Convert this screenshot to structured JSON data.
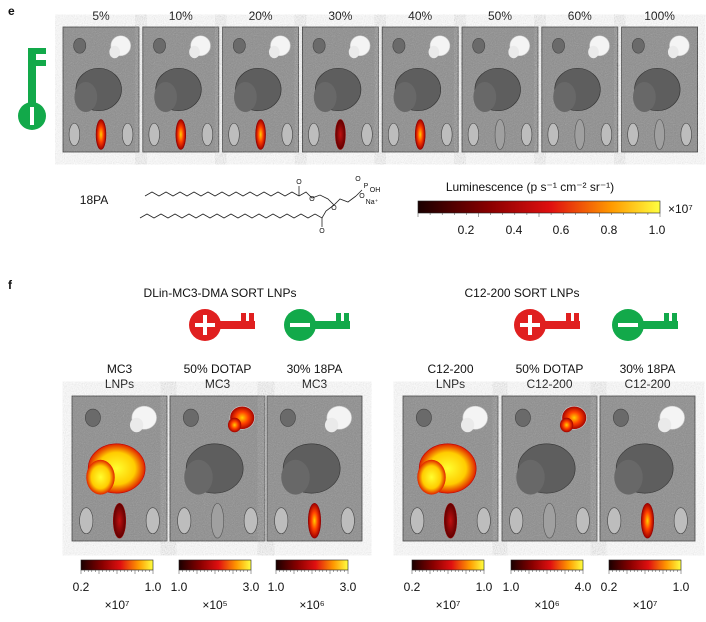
{
  "panel_e": {
    "letter": "e",
    "percentages": [
      "5%",
      "10%",
      "20%",
      "30%",
      "40%",
      "50%",
      "60%",
      "100%"
    ],
    "molecule_name": "18PA",
    "molecule_atoms": [
      "O",
      "O",
      "O",
      "O",
      "P",
      "O",
      "OH",
      "O",
      "Na⁺"
    ],
    "colorbar": {
      "title": "Luminescence (p s⁻¹ cm⁻² sr⁻¹)",
      "ticks": [
        "0.2",
        "0.4",
        "0.6",
        "0.8",
        "1.0"
      ],
      "multiplier": "×10⁷"
    }
  },
  "panel_f": {
    "letter": "f",
    "groups": [
      {
        "title": "DLin-MC3-DMA SORT LNPs",
        "images": [
          {
            "label": [
              "MC3",
              "LNPs"
            ],
            "ticks": [
              "0.2",
              "1.0"
            ],
            "multiplier": "×10⁷"
          },
          {
            "label": [
              "50% DOTAP",
              "MC3"
            ],
            "ticks": [
              "1.0",
              "3.0"
            ],
            "multiplier": "×10⁵"
          },
          {
            "label": [
              "30% 18PA",
              "MC3"
            ],
            "ticks": [
              "1.0",
              "3.0"
            ],
            "multiplier": "×10⁶"
          }
        ]
      },
      {
        "title": "C12-200 SORT LNPs",
        "images": [
          {
            "label": [
              "C12-200",
              "LNPs"
            ],
            "ticks": [
              "0.2",
              "1.0"
            ],
            "multiplier": "×10⁷"
          },
          {
            "label": [
              "50% DOTAP",
              "C12-200"
            ],
            "ticks": [
              "1.0",
              "4.0"
            ],
            "multiplier": "×10⁶"
          },
          {
            "label": [
              "30% 18PA",
              "C12-200"
            ],
            "ticks": [
              "0.2",
              "1.0"
            ],
            "multiplier": "×10⁷"
          }
        ]
      }
    ]
  }
}
